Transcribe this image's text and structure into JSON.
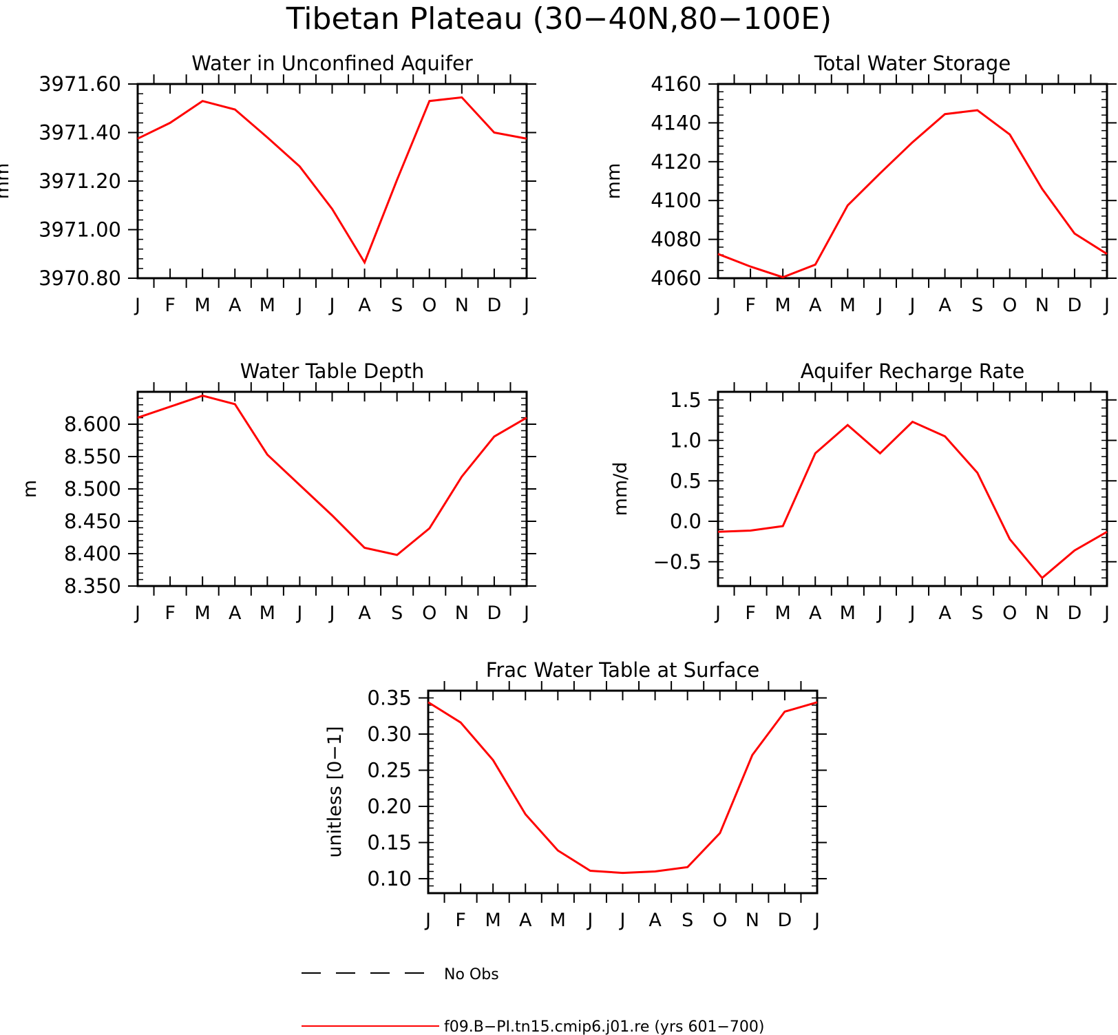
{
  "figure_title": "Tibetan Plateau (30−40N,80−100E)",
  "months": [
    "J",
    "F",
    "M",
    "A",
    "M",
    "J",
    "J",
    "A",
    "S",
    "O",
    "N",
    "D",
    "J"
  ],
  "series_color": "#ff0000",
  "legend": {
    "entries": [
      {
        "label": "No Obs",
        "style": "dashed",
        "color": "#000000"
      },
      {
        "label": "f09.B−PI.tn15.cmip6.j01.re (yrs 601−700)",
        "style": "solid",
        "color": "#ff0000"
      }
    ]
  },
  "chart_data": [
    {
      "type": "line",
      "title": "Water in Unconfined Aquifer",
      "ylabel": "mm",
      "categories": [
        "J",
        "F",
        "M",
        "A",
        "M",
        "J",
        "J",
        "A",
        "S",
        "O",
        "N",
        "D",
        "J"
      ],
      "ylim": [
        3970.8,
        3971.6
      ],
      "yticks": [
        "3970.80",
        "3971.00",
        "3971.20",
        "3971.40",
        "3971.60"
      ],
      "series": [
        {
          "values": [
            3971.375,
            3971.44,
            3971.53,
            3971.495,
            3971.38,
            3971.26,
            3971.085,
            3970.865,
            3971.205,
            3971.53,
            3971.545,
            3971.4,
            3971.375
          ]
        }
      ]
    },
    {
      "type": "line",
      "title": "Total Water Storage",
      "ylabel": "mm",
      "categories": [
        "J",
        "F",
        "M",
        "A",
        "M",
        "J",
        "J",
        "A",
        "S",
        "O",
        "N",
        "D",
        "J"
      ],
      "ylim": [
        4060,
        4160
      ],
      "yticks": [
        "4060",
        "4080",
        "4100",
        "4120",
        "4140",
        "4160"
      ],
      "series": [
        {
          "values": [
            4072.5,
            4066,
            4060.5,
            4067,
            4097.5,
            4114,
            4130,
            4144.5,
            4146.5,
            4134,
            4106,
            4083,
            4072.5
          ]
        }
      ]
    },
    {
      "type": "line",
      "title": "Water Table Depth",
      "ylabel": "m",
      "categories": [
        "J",
        "F",
        "M",
        "A",
        "M",
        "J",
        "J",
        "A",
        "S",
        "O",
        "N",
        "D",
        "J"
      ],
      "ylim": [
        8.35,
        8.65
      ],
      "yticks": [
        "8.350",
        "8.400",
        "8.450",
        "8.500",
        "8.550",
        "8.600"
      ],
      "series": [
        {
          "values": [
            8.61,
            8.627,
            8.644,
            8.631,
            8.553,
            8.506,
            8.459,
            8.409,
            8.398,
            8.439,
            8.519,
            8.581,
            8.61
          ]
        }
      ]
    },
    {
      "type": "line",
      "title": "Aquifer Recharge Rate",
      "ylabel": "mm/d",
      "categories": [
        "J",
        "F",
        "M",
        "A",
        "M",
        "J",
        "J",
        "A",
        "S",
        "O",
        "N",
        "D",
        "J"
      ],
      "ylim": [
        -0.8,
        1.6
      ],
      "yticks": [
        "−0.5",
        "0.0",
        "0.5",
        "1.0",
        "1.5"
      ],
      "series": [
        {
          "values": [
            -0.13,
            -0.115,
            -0.06,
            0.84,
            1.19,
            0.84,
            1.23,
            1.05,
            0.6,
            -0.22,
            -0.7,
            -0.36,
            -0.13
          ]
        }
      ]
    },
    {
      "type": "line",
      "title": "Frac Water Table at Surface",
      "ylabel": "unitless [0−1]",
      "categories": [
        "J",
        "F",
        "M",
        "A",
        "M",
        "J",
        "J",
        "A",
        "S",
        "O",
        "N",
        "D",
        "J"
      ],
      "ylim": [
        0.08,
        0.36
      ],
      "yticks": [
        "0.10",
        "0.15",
        "0.20",
        "0.25",
        "0.30",
        "0.35"
      ],
      "series": [
        {
          "values": [
            0.344,
            0.316,
            0.264,
            0.189,
            0.139,
            0.111,
            0.108,
            0.11,
            0.116,
            0.163,
            0.271,
            0.331,
            0.344
          ]
        }
      ]
    }
  ]
}
